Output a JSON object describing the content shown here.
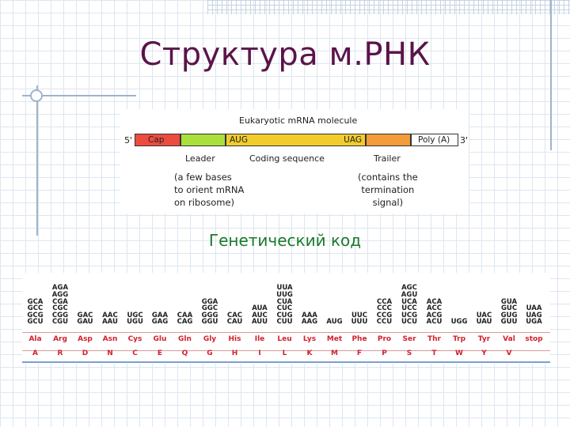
{
  "slide": {
    "title": "Структура м.РНК",
    "subtitle": "Генетический код"
  },
  "mrna_figure": {
    "title": "Eukaryotic mRNA molecule",
    "five_prime": "5'",
    "three_prime": "3'",
    "segments": {
      "cap": "Cap",
      "start_codon": "AUG",
      "stop_codon": "UAG",
      "poly_a": "Poly (A)"
    },
    "segment_colors": {
      "cap": "#ee4b3f",
      "leader": "#a9e03c",
      "coding": "#f2cc2c",
      "trailer": "#f29c3a",
      "poly_a": "#ffffff"
    },
    "labels": {
      "leader": "Leader",
      "coding": "Coding sequence",
      "trailer": "Trailer"
    },
    "notes": {
      "leader": [
        "(a few bases",
        "to orient mRNA",
        "on ribosome)"
      ],
      "trailer": [
        "(contains the",
        "termination",
        "signal)"
      ]
    }
  },
  "codon_table": {
    "amino_acids": [
      {
        "abbr": "Ala",
        "letter": "A",
        "codons": [
          "GCA",
          "GCC",
          "GCG",
          "GCU"
        ]
      },
      {
        "abbr": "Arg",
        "letter": "R",
        "codons": [
          "AGA",
          "AGG",
          "CGA",
          "CGC",
          "CGG",
          "CGU"
        ]
      },
      {
        "abbr": "Asp",
        "letter": "D",
        "codons": [
          "GAC",
          "GAU"
        ]
      },
      {
        "abbr": "Asn",
        "letter": "N",
        "codons": [
          "AAC",
          "AAU"
        ]
      },
      {
        "abbr": "Cys",
        "letter": "C",
        "codons": [
          "UGC",
          "UGU"
        ]
      },
      {
        "abbr": "Glu",
        "letter": "E",
        "codons": [
          "GAA",
          "GAG"
        ]
      },
      {
        "abbr": "Gln",
        "letter": "Q",
        "codons": [
          "CAA",
          "CAG"
        ]
      },
      {
        "abbr": "Gly",
        "letter": "G",
        "codons": [
          "GGA",
          "GGC",
          "GGG",
          "GGU"
        ]
      },
      {
        "abbr": "His",
        "letter": "H",
        "codons": [
          "CAC",
          "CAU"
        ]
      },
      {
        "abbr": "Ile",
        "letter": "I",
        "codons": [
          "AUA",
          "AUC",
          "AUU"
        ]
      },
      {
        "abbr": "Leu",
        "letter": "L",
        "codons": [
          "UUA",
          "UUG",
          "CUA",
          "CUC",
          "CUG",
          "CUU"
        ]
      },
      {
        "abbr": "Lys",
        "letter": "K",
        "codons": [
          "AAA",
          "AAG"
        ]
      },
      {
        "abbr": "Met",
        "letter": "M",
        "codons": [
          "AUG"
        ]
      },
      {
        "abbr": "Phe",
        "letter": "F",
        "codons": [
          "UUC",
          "UUU"
        ]
      },
      {
        "abbr": "Pro",
        "letter": "P",
        "codons": [
          "CCA",
          "CCC",
          "CCG",
          "CCU"
        ]
      },
      {
        "abbr": "Ser",
        "letter": "S",
        "codons": [
          "AGC",
          "AGU",
          "UCA",
          "UCC",
          "UCG",
          "UCU"
        ]
      },
      {
        "abbr": "Thr",
        "letter": "T",
        "codons": [
          "ACA",
          "ACC",
          "ACG",
          "ACU"
        ]
      },
      {
        "abbr": "Trp",
        "letter": "W",
        "codons": [
          "UGG"
        ]
      },
      {
        "abbr": "Tyr",
        "letter": "Y",
        "codons": [
          "UAC",
          "UAU"
        ]
      },
      {
        "abbr": "Val",
        "letter": "V",
        "codons": [
          "GUA",
          "GUC",
          "GUG",
          "GUU"
        ]
      },
      {
        "abbr": "stop",
        "letter": "",
        "codons": [
          "UAA",
          "UAG",
          "UGA"
        ]
      }
    ],
    "colors": {
      "amino_acid": "#d0202e",
      "rule": "#7aa0d8"
    }
  }
}
